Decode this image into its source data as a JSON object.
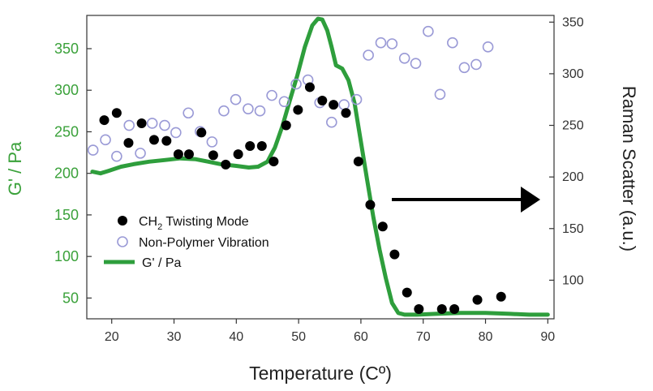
{
  "chart_data": {
    "type": "scatter",
    "xlabel": "Temperature (Cº)",
    "ylabel_left": "G' / Pa",
    "ylabel_right": "Raman Scatter (a.u.)",
    "xlim": [
      16,
      91
    ],
    "ylim_left": [
      25,
      390
    ],
    "ylim_right": [
      62.6,
      356.5
    ],
    "xticks": [
      20,
      30,
      40,
      50,
      60,
      70,
      80,
      90
    ],
    "yticks_left": [
      50,
      100,
      150,
      200,
      250,
      300,
      350
    ],
    "yticks_right": [
      100,
      150,
      200,
      250,
      300,
      350
    ],
    "grid": false,
    "legend_position": "lower-left",
    "colors": {
      "line": "#2e9e3c",
      "filled": "#000000",
      "hollow": "#9a9ad6",
      "left_axis": "#3aa13a",
      "arrow": "#000000"
    },
    "legend": {
      "ch2_prefix": "CH",
      "ch2_sub": "2",
      "ch2_suffix": " Twisting Mode",
      "nonpoly": "Non-Polymer Vibration",
      "gprime": "G' / Pa"
    },
    "annotation": "arrow pointing right, indicating the scatter series is read on the right axis",
    "series": [
      {
        "name": "CH2 Twisting Mode",
        "marker": "filled-circle",
        "axis": "right",
        "x": [
          18.8,
          20.8,
          22.7,
          24.8,
          26.8,
          28.8,
          30.7,
          32.4,
          34.4,
          36.3,
          38.3,
          40.3,
          42.2,
          44.1,
          46.0,
          48.0,
          49.9,
          51.8,
          53.8,
          55.6,
          57.6,
          59.6,
          61.5,
          63.5,
          65.4,
          67.4,
          69.3,
          73.0,
          75.0,
          78.7,
          82.5
        ],
        "y": [
          255,
          262,
          233,
          252,
          236,
          235,
          222,
          222,
          243,
          221,
          212,
          222,
          230,
          230,
          215,
          250,
          265,
          287,
          274,
          270,
          262,
          215,
          173,
          152,
          125,
          88,
          72,
          72,
          72,
          81,
          84
        ]
      },
      {
        "name": "Non-Polymer Vibration",
        "marker": "hollow-circle",
        "axis": "right",
        "x": [
          17.0,
          19.0,
          20.8,
          22.8,
          24.6,
          26.5,
          28.5,
          30.3,
          32.3,
          34.2,
          36.1,
          38.0,
          39.9,
          41.9,
          43.8,
          45.7,
          47.7,
          49.6,
          51.5,
          53.4,
          55.3,
          57.3,
          59.3,
          61.2,
          63.2,
          65.0,
          67.0,
          68.8,
          70.8,
          72.7,
          74.7,
          76.6,
          78.5,
          80.4
        ],
        "y": [
          226,
          236,
          220,
          250,
          223,
          252,
          250,
          243,
          262,
          244,
          234,
          264,
          275,
          266,
          264,
          279,
          273,
          290,
          294,
          272,
          253,
          270,
          275,
          318,
          330,
          329,
          315,
          310,
          341,
          280,
          330,
          306,
          309,
          326
        ]
      },
      {
        "name": "G' / Pa",
        "marker": "line",
        "axis": "left",
        "x": [
          16.9,
          18.2,
          19.5,
          21.5,
          23.5,
          26.0,
          28.5,
          31.0,
          33.5,
          35.5,
          37.5,
          40.0,
          42.0,
          43.5,
          45.0,
          46.2,
          47.4,
          48.6,
          49.8,
          51.0,
          52.2,
          53.1,
          53.8,
          54.6,
          55.3,
          56.0,
          57.0,
          58.0,
          59.0,
          60.0,
          61.0,
          62.0,
          63.0,
          64.0,
          65.0,
          66.0,
          67.0,
          69.0,
          72.0,
          76.0,
          80.0,
          84.0,
          87.0,
          90.0
        ],
        "y": [
          202,
          200,
          203,
          208,
          211,
          214,
          216,
          218,
          217,
          214,
          211,
          209,
          207,
          208,
          214,
          231,
          257,
          288,
          318,
          352,
          378,
          386,
          385,
          372,
          352,
          330,
          326,
          312,
          284,
          238,
          192,
          147,
          108,
          74,
          44,
          32,
          30,
          30,
          31,
          32,
          32,
          31,
          30,
          30
        ]
      }
    ]
  }
}
